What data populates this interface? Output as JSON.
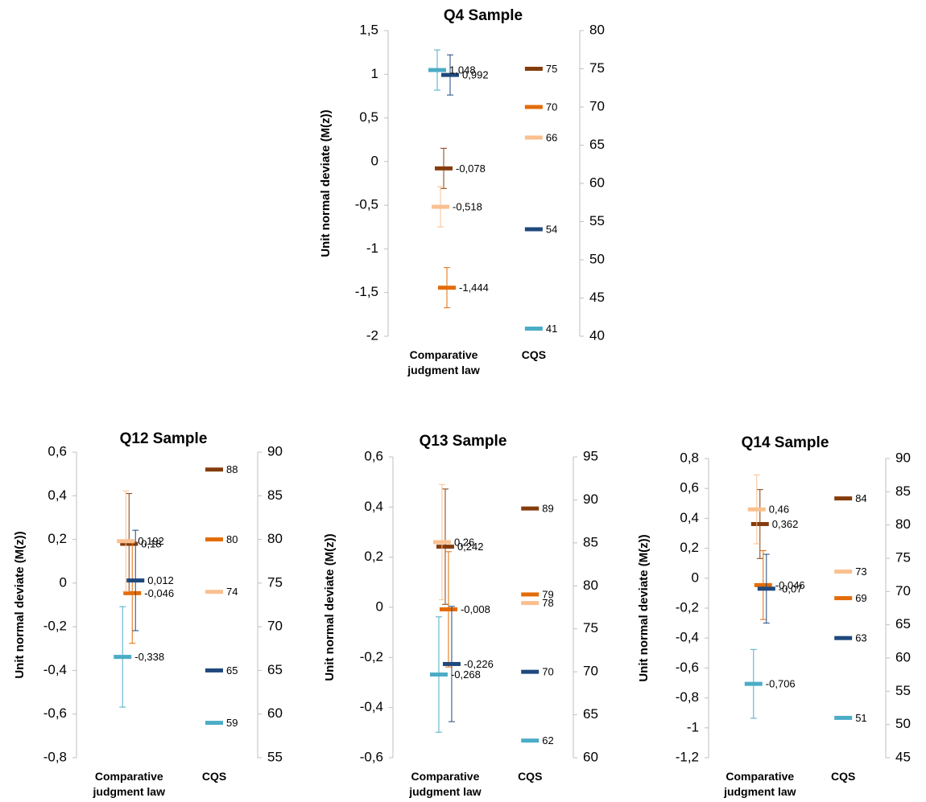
{
  "chart_data": [
    {
      "type": "errorbar",
      "title": "Q4 Sample",
      "y_label": "Unit normal deviate (M(z))",
      "categories": [
        "Comparative judgment law",
        "CQS"
      ],
      "ylim": [
        -2,
        1.5
      ],
      "yticks": [
        -2,
        {
          "value": -1.5,
          "label": "-1,5"
        },
        -1,
        {
          "value": -0.5,
          "label": "-0,5"
        },
        0,
        {
          "value": 0.5,
          "label": "0,5"
        },
        1,
        {
          "value": 1.5,
          "label": "1,5"
        }
      ],
      "y2lim": [
        40,
        80
      ],
      "y2ticks": [
        40,
        45,
        50,
        55,
        60,
        65,
        70,
        75,
        80
      ],
      "series": [
        {
          "color": "#843c0c",
          "values": [
            -0.078,
            null
          ],
          "errors": [
            0.23,
            null
          ],
          "value_labels": [
            "-0,078",
            null
          ]
        },
        {
          "color": "#e36c09",
          "values": [
            -1.444,
            null
          ],
          "errors": [
            0.23,
            null
          ],
          "value_labels": [
            "-1,444",
            null
          ]
        },
        {
          "color": "#fac090",
          "values": [
            -0.518,
            null
          ],
          "errors": [
            0.23,
            null
          ],
          "value_labels": [
            "-0,518",
            null
          ]
        },
        {
          "color": "#1f497d",
          "values": [
            0.992,
            null
          ],
          "errors": [
            0.23,
            null
          ],
          "value_labels": [
            "0,992",
            null
          ]
        },
        {
          "color": "#4bacc6",
          "values": [
            1.048,
            null
          ],
          "errors": [
            0.23,
            null
          ],
          "value_labels": [
            "1,048",
            null
          ]
        },
        {
          "color": "#843c0c",
          "axis": "y2",
          "values": [
            null,
            75
          ]
        },
        {
          "color": "#e36c09",
          "axis": "y2",
          "values": [
            null,
            70
          ]
        },
        {
          "color": "#fac090",
          "axis": "y2",
          "values": [
            null,
            66
          ]
        },
        {
          "color": "#1f497d",
          "axis": "y2",
          "values": [
            null,
            54
          ]
        },
        {
          "color": "#4bacc6",
          "axis": "y2",
          "values": [
            null,
            41
          ]
        }
      ]
    },
    {
      "type": "errorbar",
      "title": "Q12 Sample",
      "y_label": "Unit normal deviate (M(z))",
      "categories": [
        "Comparative judgment law",
        "CQS"
      ],
      "ylim": [
        -0.8,
        0.6
      ],
      "yticks": [
        {
          "value": -0.8,
          "label": "-0,8"
        },
        {
          "value": -0.6,
          "label": "-0,6"
        },
        {
          "value": -0.4,
          "label": "-0,4"
        },
        {
          "value": -0.2,
          "label": "-0,2"
        },
        0,
        {
          "value": 0.2,
          "label": "0,2"
        },
        {
          "value": 0.4,
          "label": "0,4"
        },
        {
          "value": 0.6,
          "label": "0,6"
        }
      ],
      "y2lim": [
        55,
        90
      ],
      "y2ticks": [
        55,
        60,
        65,
        70,
        75,
        80,
        85,
        90
      ],
      "series": [
        {
          "color": "#843c0c",
          "values": [
            0.18,
            null
          ],
          "errors": [
            0.23,
            null
          ],
          "value_labels": [
            "0,18",
            null
          ]
        },
        {
          "color": "#e36c09",
          "values": [
            -0.046,
            null
          ],
          "errors": [
            0.23,
            null
          ],
          "value_labels": [
            "-0,046",
            null
          ]
        },
        {
          "color": "#fac090",
          "values": [
            0.192,
            null
          ],
          "errors": [
            0.23,
            null
          ],
          "value_labels": [
            "0,192",
            null
          ]
        },
        {
          "color": "#1f497d",
          "values": [
            0.012,
            null
          ],
          "errors": [
            0.23,
            null
          ],
          "value_labels": [
            "0,012",
            null
          ]
        },
        {
          "color": "#4bacc6",
          "values": [
            -0.338,
            null
          ],
          "errors": [
            0.23,
            null
          ],
          "value_labels": [
            "-0,338",
            null
          ]
        },
        {
          "color": "#843c0c",
          "axis": "y2",
          "values": [
            null,
            88
          ]
        },
        {
          "color": "#e36c09",
          "axis": "y2",
          "values": [
            null,
            80
          ]
        },
        {
          "color": "#fac090",
          "axis": "y2",
          "values": [
            null,
            74
          ]
        },
        {
          "color": "#1f497d",
          "axis": "y2",
          "values": [
            null,
            65
          ]
        },
        {
          "color": "#4bacc6",
          "axis": "y2",
          "values": [
            null,
            59
          ]
        }
      ]
    },
    {
      "type": "errorbar",
      "title": "Q13 Sample",
      "y_label": "Unit normal deviate (M(z))",
      "categories": [
        "Comparative judgment law",
        "CQS"
      ],
      "ylim": [
        -0.6,
        0.6
      ],
      "yticks": [
        {
          "value": -0.6,
          "label": "-0,6"
        },
        {
          "value": -0.4,
          "label": "-0,4"
        },
        {
          "value": -0.2,
          "label": "-0,2"
        },
        0,
        {
          "value": 0.2,
          "label": "0,2"
        },
        {
          "value": 0.4,
          "label": "0,4"
        },
        {
          "value": 0.6,
          "label": "0,6"
        }
      ],
      "y2lim": [
        60,
        95
      ],
      "y2ticks": [
        60,
        65,
        70,
        75,
        80,
        85,
        90,
        95
      ],
      "series": [
        {
          "color": "#843c0c",
          "values": [
            0.242,
            null
          ],
          "errors": [
            0.23,
            null
          ],
          "value_labels": [
            "0,242",
            null
          ]
        },
        {
          "color": "#e36c09",
          "values": [
            -0.008,
            null
          ],
          "errors": [
            0.23,
            null
          ],
          "value_labels": [
            "-0,008",
            null
          ]
        },
        {
          "color": "#fac090",
          "values": [
            0.26,
            null
          ],
          "errors": [
            0.23,
            null
          ],
          "value_labels": [
            "0,26",
            null
          ]
        },
        {
          "color": "#1f497d",
          "values": [
            -0.226,
            null
          ],
          "errors": [
            0.23,
            null
          ],
          "value_labels": [
            "-0,226",
            null
          ]
        },
        {
          "color": "#4bacc6",
          "values": [
            -0.268,
            null
          ],
          "errors": [
            0.23,
            null
          ],
          "value_labels": [
            "-0,268",
            null
          ]
        },
        {
          "color": "#843c0c",
          "axis": "y2",
          "values": [
            null,
            89
          ]
        },
        {
          "color": "#e36c09",
          "axis": "y2",
          "values": [
            null,
            79
          ]
        },
        {
          "color": "#fac090",
          "axis": "y2",
          "values": [
            null,
            78
          ]
        },
        {
          "color": "#1f497d",
          "axis": "y2",
          "values": [
            null,
            70
          ]
        },
        {
          "color": "#4bacc6",
          "axis": "y2",
          "values": [
            null,
            62
          ]
        }
      ]
    },
    {
      "type": "errorbar",
      "title": "Q14 Sample",
      "y_label": "Unit normal deviate (M(z))",
      "categories": [
        "Comparative judgment law",
        "CQS"
      ],
      "ylim": [
        -1.2,
        0.8
      ],
      "yticks": [
        {
          "value": -1.2,
          "label": "-1,2"
        },
        -1,
        {
          "value": -0.8,
          "label": "-0,8"
        },
        {
          "value": -0.6,
          "label": "-0,6"
        },
        {
          "value": -0.4,
          "label": "-0,4"
        },
        {
          "value": -0.2,
          "label": "-0,2"
        },
        0,
        {
          "value": 0.2,
          "label": "0,2"
        },
        {
          "value": 0.4,
          "label": "0,4"
        },
        {
          "value": 0.6,
          "label": "0,6"
        },
        {
          "value": 0.8,
          "label": "0,8"
        }
      ],
      "y2lim": [
        45,
        90
      ],
      "y2ticks": [
        45,
        50,
        55,
        60,
        65,
        70,
        75,
        80,
        85,
        90
      ],
      "series": [
        {
          "color": "#843c0c",
          "values": [
            0.362,
            null
          ],
          "errors": [
            0.23,
            null
          ],
          "value_labels": [
            "0,362",
            null
          ]
        },
        {
          "color": "#e36c09",
          "values": [
            -0.046,
            null
          ],
          "errors": [
            0.23,
            null
          ],
          "value_labels": [
            "-0,046",
            null
          ]
        },
        {
          "color": "#fac090",
          "values": [
            0.46,
            null
          ],
          "errors": [
            0.23,
            null
          ],
          "value_labels": [
            "0,46",
            null
          ]
        },
        {
          "color": "#1f497d",
          "values": [
            -0.07,
            null
          ],
          "errors": [
            0.23,
            null
          ],
          "value_labels": [
            "-0,07",
            null
          ]
        },
        {
          "color": "#4bacc6",
          "values": [
            -0.706,
            null
          ],
          "errors": [
            0.23,
            null
          ],
          "value_labels": [
            "-0,706",
            null
          ]
        },
        {
          "color": "#843c0c",
          "axis": "y2",
          "values": [
            null,
            84
          ]
        },
        {
          "color": "#e36c09",
          "axis": "y2",
          "values": [
            null,
            69
          ]
        },
        {
          "color": "#fac090",
          "axis": "y2",
          "values": [
            null,
            73
          ]
        },
        {
          "color": "#1f497d",
          "axis": "y2",
          "values": [
            null,
            63
          ]
        },
        {
          "color": "#4bacc6",
          "axis": "y2",
          "values": [
            null,
            51
          ]
        }
      ]
    }
  ]
}
